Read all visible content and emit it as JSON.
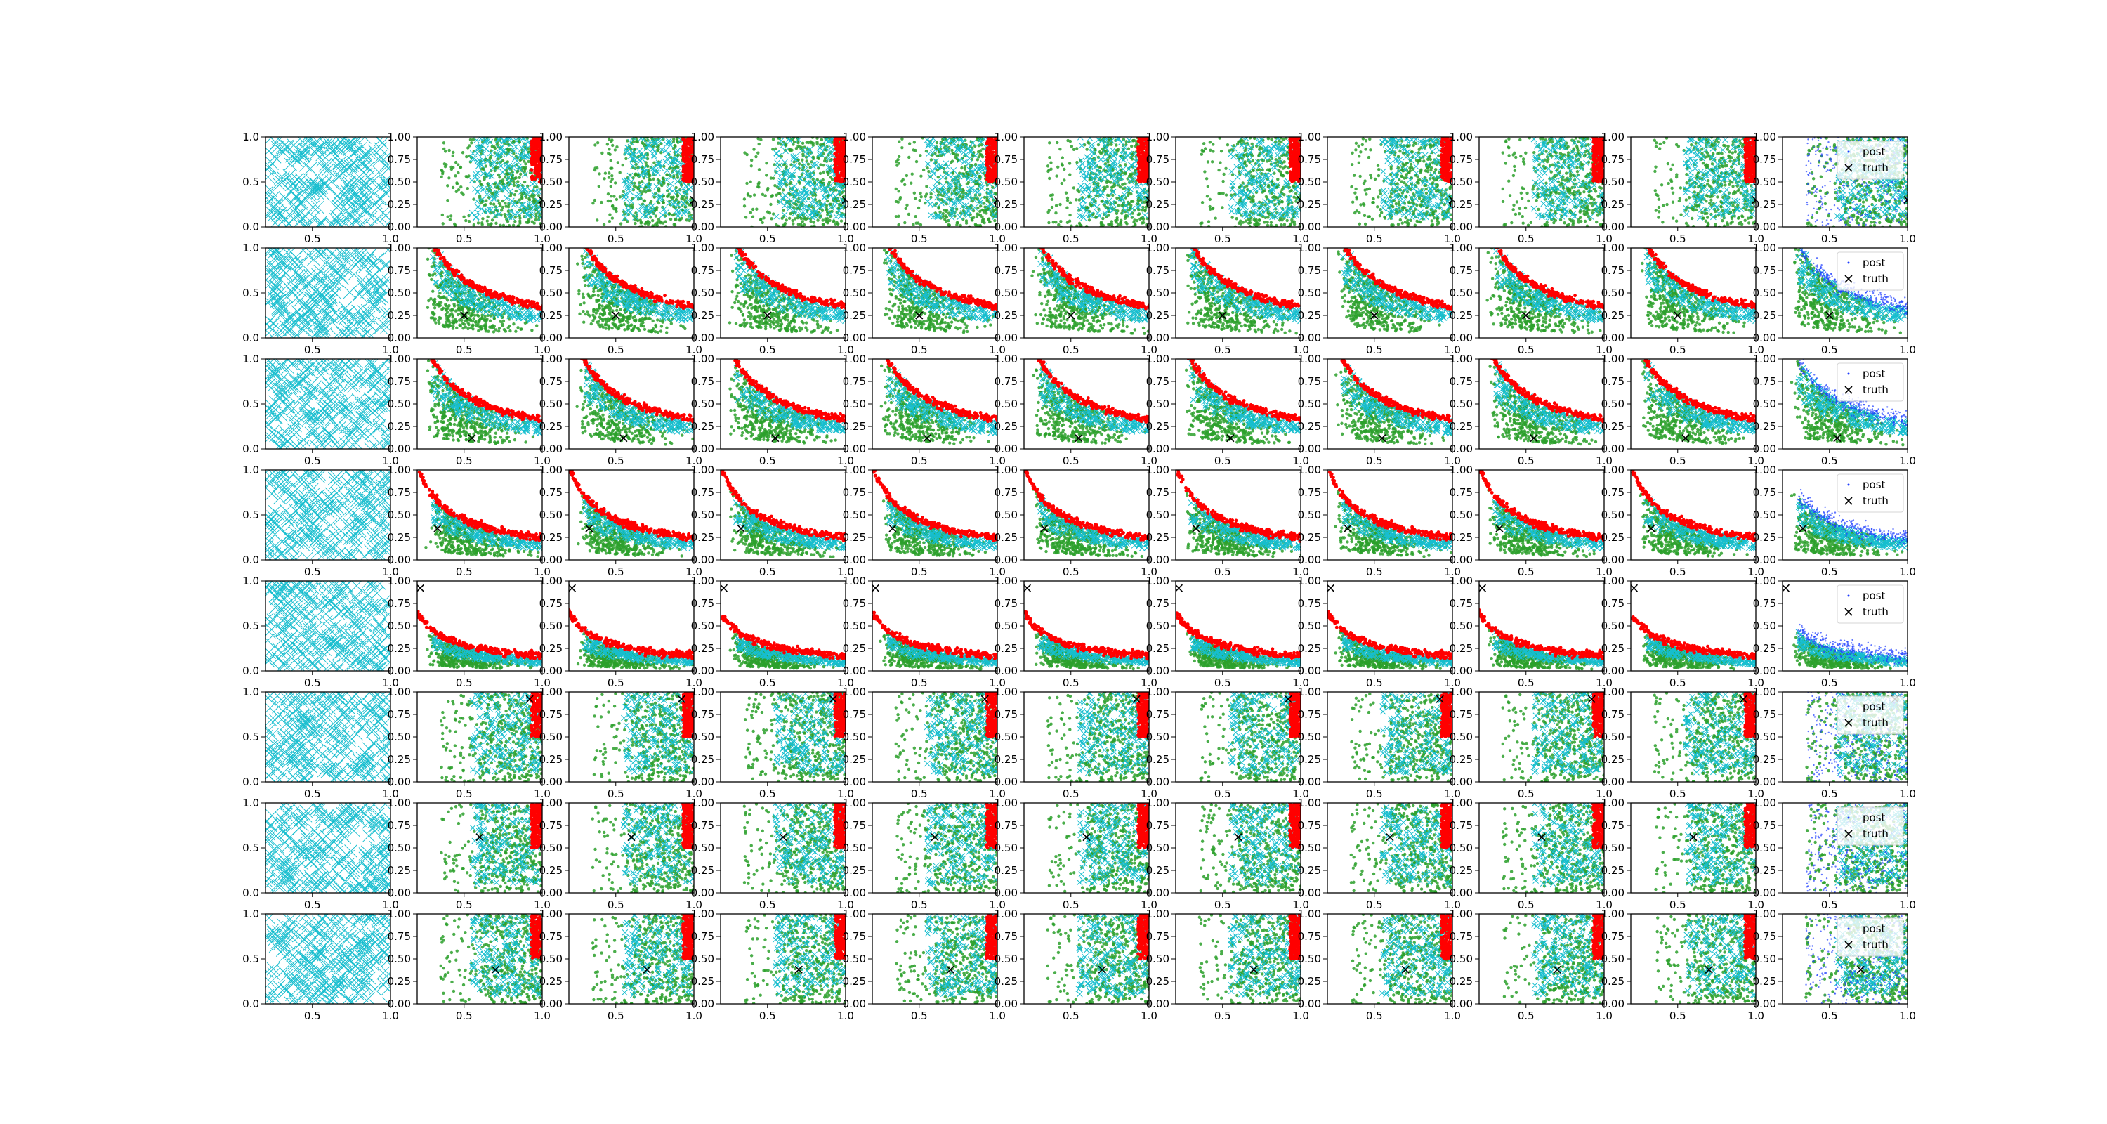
{
  "figure": {
    "rows": 8,
    "cols": 11,
    "colors": {
      "uniform_marker": "#17becf",
      "prior_samples": "#2ca02c",
      "particles": "#17becf",
      "posterior_samples": "#ff0000",
      "post_samples": "#1f3fff",
      "truth_marker": "#000000",
      "axes": "#000000"
    }
  },
  "chart_data": {
    "type": "scatter",
    "description_of_layout": "8x11 grid of scatter subplots; column 1 shows uniform x markers over [0.2,1]x[0,1]; columns 2-10 show green prior samples, cyan x particles and red posterior samples concentrated along a curved band; column 11 shows blue post samples with a legend",
    "xlim_first_col": [
      0.2,
      1.0
    ],
    "xlim": [
      0.2,
      1.0
    ],
    "ylim": [
      0.0,
      1.0
    ],
    "first_col_xticks": [
      "0.5",
      "1.0"
    ],
    "first_col_yticks": [
      "0.0",
      "0.5",
      "1.0"
    ],
    "xticks": [
      "0.5",
      "1.0"
    ],
    "yticks": [
      "0.00",
      "0.25",
      "0.50",
      "0.75",
      "1.00"
    ],
    "legend": [
      "post",
      "truth"
    ],
    "rows": [
      {
        "truth": [
          1.0,
          0.3
        ],
        "curve_k": null
      },
      {
        "truth": [
          0.5,
          0.25
        ],
        "curve_k": 0.3
      },
      {
        "truth": [
          0.55,
          0.12
        ],
        "curve_k": 0.28
      },
      {
        "truth": [
          0.33,
          0.35
        ],
        "curve_k": 0.2
      },
      {
        "truth": [
          0.22,
          0.92
        ],
        "curve_k": 0.12
      },
      {
        "truth": [
          0.92,
          0.92
        ],
        "curve_k": null
      },
      {
        "truth": [
          0.6,
          0.62
        ],
        "curve_k": null
      },
      {
        "truth": [
          0.7,
          0.38
        ],
        "curve_k": null
      }
    ]
  }
}
